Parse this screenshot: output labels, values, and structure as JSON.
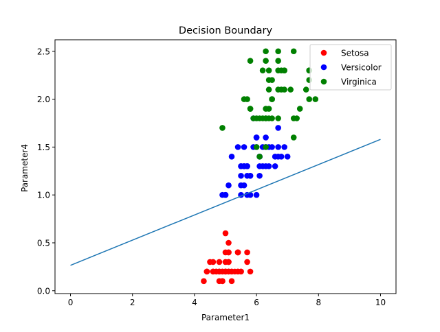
{
  "chart_data": {
    "type": "scatter",
    "title": "Decision Boundary",
    "xlabel": "Parameter1",
    "ylabel": "Parameter4",
    "xlim": [
      -0.5,
      10.5
    ],
    "ylim": [
      -0.03,
      2.62
    ],
    "xticks": [
      0,
      2,
      4,
      6,
      8,
      10
    ],
    "yticks": [
      0.0,
      0.5,
      1.0,
      1.5,
      2.0,
      2.5
    ],
    "xtick_labels": [
      "0",
      "2",
      "4",
      "6",
      "8",
      "10"
    ],
    "ytick_labels": [
      "0.0",
      "0.5",
      "1.0",
      "1.5",
      "2.0",
      "2.5"
    ],
    "grid": false,
    "legend_position": "top-right",
    "series": [
      {
        "name": "Setosa",
        "color": "#ff0000",
        "points": [
          [
            5.1,
            0.2
          ],
          [
            4.9,
            0.2
          ],
          [
            4.7,
            0.2
          ],
          [
            4.6,
            0.2
          ],
          [
            5.0,
            0.2
          ],
          [
            5.4,
            0.4
          ],
          [
            4.6,
            0.3
          ],
          [
            5.0,
            0.2
          ],
          [
            4.4,
            0.2
          ],
          [
            4.9,
            0.1
          ],
          [
            5.4,
            0.2
          ],
          [
            4.8,
            0.2
          ],
          [
            4.8,
            0.1
          ],
          [
            4.3,
            0.1
          ],
          [
            5.8,
            0.2
          ],
          [
            5.7,
            0.4
          ],
          [
            5.4,
            0.4
          ],
          [
            5.1,
            0.3
          ],
          [
            5.7,
            0.3
          ],
          [
            5.1,
            0.3
          ],
          [
            5.4,
            0.2
          ],
          [
            5.1,
            0.4
          ],
          [
            4.6,
            0.2
          ],
          [
            5.1,
            0.5
          ],
          [
            4.8,
            0.2
          ],
          [
            5.0,
            0.2
          ],
          [
            5.0,
            0.4
          ],
          [
            5.2,
            0.2
          ],
          [
            5.2,
            0.2
          ],
          [
            4.7,
            0.2
          ],
          [
            4.8,
            0.2
          ],
          [
            5.4,
            0.4
          ],
          [
            5.2,
            0.1
          ],
          [
            5.5,
            0.2
          ],
          [
            4.9,
            0.2
          ],
          [
            5.0,
            0.2
          ],
          [
            5.5,
            0.2
          ],
          [
            4.9,
            0.1
          ],
          [
            4.4,
            0.2
          ],
          [
            5.1,
            0.2
          ],
          [
            5.0,
            0.3
          ],
          [
            4.5,
            0.3
          ],
          [
            4.4,
            0.2
          ],
          [
            5.0,
            0.6
          ],
          [
            5.1,
            0.4
          ],
          [
            4.8,
            0.3
          ],
          [
            5.1,
            0.2
          ],
          [
            4.6,
            0.2
          ],
          [
            5.3,
            0.2
          ],
          [
            5.0,
            0.2
          ]
        ]
      },
      {
        "name": "Versicolor",
        "color": "#0000ff",
        "points": [
          [
            7.0,
            1.4
          ],
          [
            6.4,
            1.5
          ],
          [
            6.9,
            1.5
          ],
          [
            5.5,
            1.3
          ],
          [
            6.5,
            1.5
          ],
          [
            5.7,
            1.3
          ],
          [
            6.3,
            1.6
          ],
          [
            4.9,
            1.0
          ],
          [
            6.6,
            1.3
          ],
          [
            5.2,
            1.4
          ],
          [
            5.0,
            1.0
          ],
          [
            5.9,
            1.5
          ],
          [
            6.0,
            1.0
          ],
          [
            6.1,
            1.4
          ],
          [
            5.6,
            1.3
          ],
          [
            6.7,
            1.4
          ],
          [
            5.6,
            1.5
          ],
          [
            5.8,
            1.0
          ],
          [
            6.2,
            1.5
          ],
          [
            5.6,
            1.1
          ],
          [
            5.9,
            1.8
          ],
          [
            6.1,
            1.3
          ],
          [
            6.3,
            1.5
          ],
          [
            6.1,
            1.2
          ],
          [
            6.4,
            1.3
          ],
          [
            6.6,
            1.4
          ],
          [
            6.8,
            1.4
          ],
          [
            6.7,
            1.7
          ],
          [
            6.0,
            1.5
          ],
          [
            5.7,
            1.0
          ],
          [
            5.5,
            1.1
          ],
          [
            5.5,
            1.0
          ],
          [
            5.8,
            1.2
          ],
          [
            6.0,
            1.6
          ],
          [
            5.4,
            1.5
          ],
          [
            6.0,
            1.6
          ],
          [
            6.7,
            1.5
          ],
          [
            6.3,
            1.3
          ],
          [
            5.6,
            1.3
          ],
          [
            5.5,
            1.3
          ],
          [
            5.5,
            1.2
          ],
          [
            6.1,
            1.4
          ],
          [
            5.8,
            1.2
          ],
          [
            5.0,
            1.0
          ],
          [
            5.6,
            1.3
          ],
          [
            5.7,
            1.2
          ],
          [
            5.7,
            1.3
          ],
          [
            6.2,
            1.3
          ],
          [
            5.1,
            1.1
          ],
          [
            5.7,
            1.3
          ]
        ]
      },
      {
        "name": "Virginica",
        "color": "#008000",
        "points": [
          [
            6.3,
            2.5
          ],
          [
            5.8,
            1.9
          ],
          [
            7.1,
            2.1
          ],
          [
            6.3,
            1.8
          ],
          [
            6.5,
            2.2
          ],
          [
            7.6,
            2.1
          ],
          [
            4.9,
            1.7
          ],
          [
            7.3,
            1.8
          ],
          [
            6.7,
            1.8
          ],
          [
            7.2,
            2.5
          ],
          [
            6.5,
            2.0
          ],
          [
            6.4,
            1.9
          ],
          [
            6.8,
            2.1
          ],
          [
            5.7,
            2.0
          ],
          [
            5.8,
            2.4
          ],
          [
            6.4,
            2.3
          ],
          [
            6.5,
            1.8
          ],
          [
            7.7,
            2.2
          ],
          [
            7.7,
            2.3
          ],
          [
            6.0,
            1.5
          ],
          [
            6.9,
            2.3
          ],
          [
            5.6,
            2.0
          ],
          [
            7.7,
            2.0
          ],
          [
            6.3,
            1.8
          ],
          [
            6.7,
            2.1
          ],
          [
            7.2,
            1.8
          ],
          [
            6.2,
            1.8
          ],
          [
            6.1,
            1.8
          ],
          [
            6.4,
            2.1
          ],
          [
            7.2,
            1.6
          ],
          [
            7.4,
            1.9
          ],
          [
            7.9,
            2.0
          ],
          [
            6.4,
            2.2
          ],
          [
            6.3,
            1.5
          ],
          [
            6.1,
            1.4
          ],
          [
            7.7,
            2.3
          ],
          [
            6.3,
            2.4
          ],
          [
            6.4,
            1.8
          ],
          [
            6.0,
            1.8
          ],
          [
            6.9,
            2.1
          ],
          [
            6.7,
            2.4
          ],
          [
            6.9,
            2.3
          ],
          [
            5.8,
            1.9
          ],
          [
            6.8,
            2.3
          ],
          [
            6.7,
            2.5
          ],
          [
            6.7,
            2.3
          ],
          [
            6.3,
            1.9
          ],
          [
            6.5,
            2.0
          ],
          [
            6.2,
            2.3
          ],
          [
            5.9,
            1.8
          ]
        ]
      }
    ],
    "line": {
      "color": "#1f77b4",
      "points": [
        [
          0,
          0.265
        ],
        [
          10,
          1.58
        ]
      ]
    }
  }
}
